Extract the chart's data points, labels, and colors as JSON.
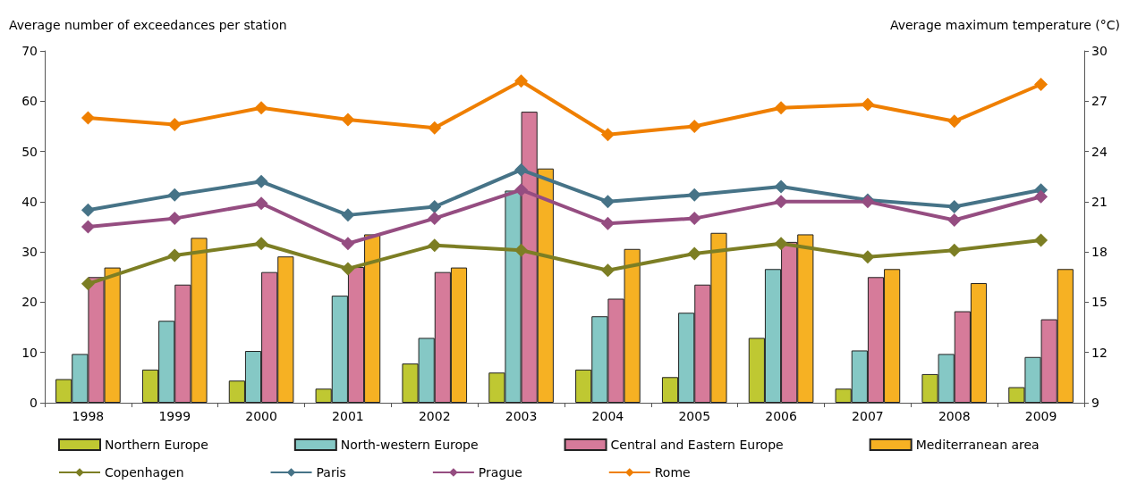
{
  "chart_data": {
    "type": "bar",
    "ylabel": "Average number of exceedances per station",
    "y2label": "Average maximum temperature (°C)",
    "categories": [
      "1998",
      "1999",
      "2000",
      "2001",
      "2002",
      "2003",
      "2004",
      "2005",
      "2006",
      "2007",
      "2008",
      "2009"
    ],
    "series": [
      {
        "name": "Northern Europe",
        "color": "#bfc832",
        "values": [
          4.7,
          6.6,
          4.4,
          2.8,
          7.8,
          6.0,
          6.6,
          5.1,
          12.9,
          2.8,
          5.7,
          3.1
        ]
      },
      {
        "name": "North-western Europe",
        "color": "#85c8c5",
        "values": [
          9.7,
          16.3,
          10.3,
          21.3,
          12.9,
          42.2,
          17.2,
          17.9,
          26.6,
          10.4,
          9.7,
          9.1
        ]
      },
      {
        "name": "Central and Eastern Europe",
        "color": "#d67b9a",
        "values": [
          25.0,
          23.5,
          26.0,
          27.0,
          26.0,
          57.9,
          20.7,
          23.5,
          32.0,
          25.0,
          18.2,
          16.6
        ]
      },
      {
        "name": "Mediterranean area",
        "color": "#f6b123",
        "values": [
          26.9,
          32.8,
          29.1,
          33.5,
          26.9,
          46.6,
          30.6,
          33.8,
          33.5,
          26.6,
          23.8,
          26.6
        ]
      },
      {
        "name": "Copenhagen",
        "type": "line",
        "axis": "y2",
        "color": "#7c7e24",
        "values": [
          16.1,
          17.8,
          18.5,
          17.0,
          18.4,
          18.1,
          16.9,
          17.9,
          18.5,
          17.7,
          18.1,
          18.7
        ]
      },
      {
        "name": "Paris",
        "type": "line",
        "axis": "y2",
        "color": "#467387",
        "values": [
          20.5,
          21.4,
          22.2,
          20.2,
          20.7,
          22.9,
          21.0,
          21.4,
          21.9,
          21.1,
          20.7,
          21.7
        ]
      },
      {
        "name": "Prague",
        "type": "line",
        "axis": "y2",
        "color": "#954d81",
        "values": [
          19.5,
          20.0,
          20.9,
          18.5,
          20.0,
          21.7,
          19.7,
          20.0,
          21.0,
          21.0,
          19.9,
          21.3
        ]
      },
      {
        "name": "Rome",
        "type": "line",
        "axis": "y2",
        "color": "#ef7f00",
        "values": [
          26.0,
          25.6,
          26.6,
          25.9,
          25.4,
          28.2,
          25.0,
          25.5,
          26.6,
          26.8,
          25.8,
          28.0
        ]
      }
    ],
    "ylim": [
      0,
      70
    ],
    "yticks": [
      0,
      10,
      20,
      30,
      40,
      50,
      60,
      70
    ],
    "y2lim": [
      9,
      30
    ],
    "y2ticks": [
      9,
      12,
      15,
      18,
      21,
      24,
      27,
      30
    ],
    "grid": false,
    "legend": "bottom",
    "marker": "diamond",
    "line_style": "solid"
  }
}
